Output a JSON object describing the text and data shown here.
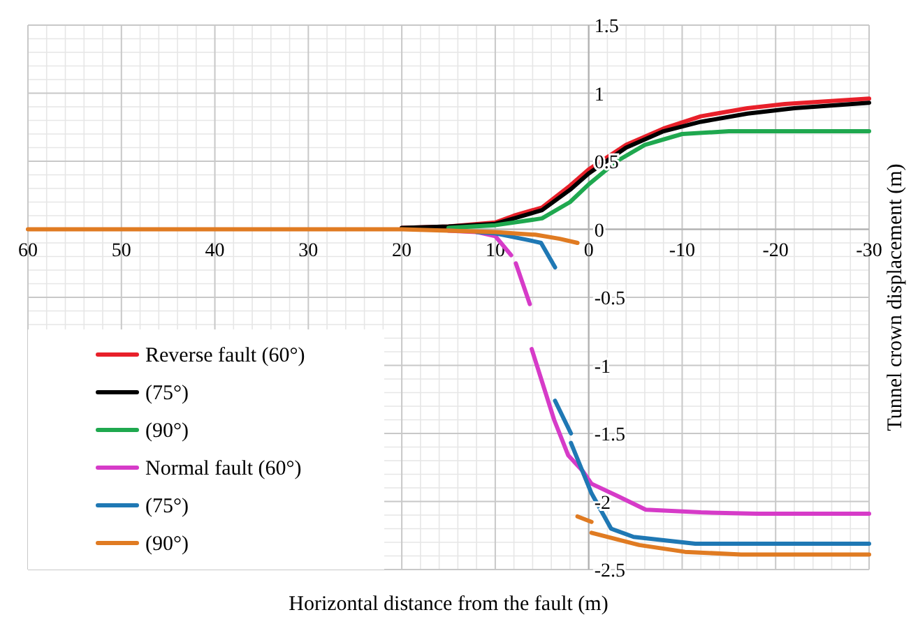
{
  "chart_data": {
    "type": "line",
    "xlabel": "Horizontal distance from the fault (m)",
    "ylabel": "Tunnel crown displacement  (m)",
    "xlim": [
      60,
      -30
    ],
    "xticks": [
      60,
      50,
      40,
      30,
      20,
      10,
      0,
      -10,
      -20,
      -30
    ],
    "ylim": [
      -2.5,
      1.5
    ],
    "yticks": [
      -2.5,
      -2,
      -1.5,
      -1,
      -0.5,
      0,
      0.5,
      1,
      1.5
    ],
    "grid": true,
    "legend": "bottom left",
    "line_style": "solid",
    "marker": "none",
    "series": [
      {
        "name": "Reverse fault (60°)",
        "color": "#e8202a",
        "x": [
          20,
          15,
          10,
          8,
          5,
          2,
          0,
          -4,
          -8,
          -12,
          -17,
          -21,
          -30
        ],
        "values": [
          0.01,
          0.02,
          0.05,
          0.1,
          0.16,
          0.32,
          0.44,
          0.62,
          0.74,
          0.83,
          0.89,
          0.92,
          0.96
        ]
      },
      {
        "name": "(75°)",
        "color": "#000000",
        "x": [
          20,
          15,
          10,
          8,
          5,
          2,
          0,
          -4,
          -8,
          -12,
          -17,
          -22,
          -30
        ],
        "values": [
          0.01,
          0.02,
          0.04,
          0.08,
          0.14,
          0.29,
          0.41,
          0.6,
          0.72,
          0.79,
          0.85,
          0.89,
          0.93
        ]
      },
      {
        "name": "(90°)",
        "color": "#1fa84f",
        "x": [
          15,
          10,
          5,
          2,
          0,
          -3,
          -6,
          -10,
          -15,
          -30
        ],
        "values": [
          0.01,
          0.03,
          0.08,
          0.2,
          0.33,
          0.5,
          0.62,
          0.7,
          0.72,
          0.72
        ]
      },
      {
        "name": "Normal fault (60°)",
        "color": "#d63bc8",
        "x": [
          15,
          12,
          10,
          8.3,
          null,
          7.8,
          6.3,
          null,
          6.1,
          3.7,
          2.2,
          0.6,
          -0.3,
          -3.1,
          -6.1,
          -12,
          -18,
          -30
        ],
        "values": [
          -0.01,
          -0.02,
          -0.05,
          -0.19,
          null,
          -0.25,
          -0.55,
          null,
          -0.88,
          -1.4,
          -1.66,
          -1.78,
          -1.87,
          -1.96,
          -2.06,
          -2.08,
          -2.09,
          -2.09
        ]
      },
      {
        "name": "(75°)",
        "color": "#1f78b4",
        "x": [
          12,
          10,
          6.4,
          5.1,
          3.6,
          null,
          3.6,
          1.9,
          null,
          1.9,
          -0.3,
          -2.4,
          -4.8,
          -11.4,
          -30
        ],
        "values": [
          -0.02,
          -0.03,
          -0.08,
          -0.1,
          -0.28,
          null,
          -1.26,
          -1.5,
          null,
          -1.57,
          -1.94,
          -2.2,
          -2.26,
          -2.31,
          -2.31
        ]
      },
      {
        "name": "(90°)",
        "color": "#e07b22",
        "x": [
          60,
          20,
          15,
          10,
          5.7,
          3.1,
          1.2,
          null,
          1.2,
          -0.3,
          null,
          -0.3,
          -5.4,
          -10.3,
          -16.3,
          -30
        ],
        "values": [
          0,
          0,
          -0.01,
          -0.02,
          -0.04,
          -0.07,
          -0.1,
          null,
          -2.11,
          -2.15,
          null,
          -2.23,
          -2.32,
          -2.37,
          -2.39,
          -2.39
        ]
      }
    ]
  }
}
